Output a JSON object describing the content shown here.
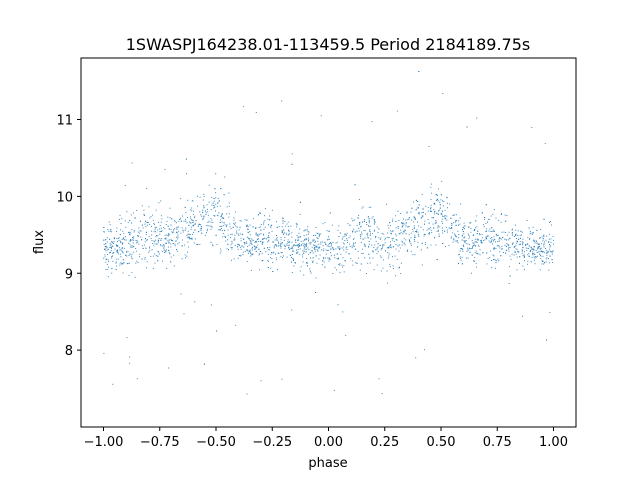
{
  "chart_data": {
    "type": "scatter",
    "title": "1SWASPJ164238.01-113459.5 Period 2184189.75s",
    "xlabel": "phase",
    "ylabel": "flux",
    "xlim": [
      -1.1,
      1.1
    ],
    "ylim": [
      7.0,
      11.8
    ],
    "xticks": [
      -1.0,
      -0.75,
      -0.5,
      -0.25,
      0.0,
      0.25,
      0.5,
      0.75,
      1.0
    ],
    "xtick_labels": [
      "−1.00",
      "−0.75",
      "−0.50",
      "−0.25",
      "0.00",
      "0.25",
      "0.50",
      "0.75",
      "1.00"
    ],
    "yticks": [
      8,
      9,
      10,
      11
    ],
    "ytick_labels": [
      "8",
      "9",
      "10",
      "11"
    ],
    "marker_color": "#1f77b4",
    "grid": false,
    "legend": "none",
    "profile": {
      "phase": [
        -1.0,
        -0.95,
        -0.9,
        -0.85,
        -0.8,
        -0.75,
        -0.7,
        -0.65,
        -0.6,
        -0.55,
        -0.5,
        -0.45,
        -0.4,
        -0.35,
        -0.3,
        -0.25,
        -0.2,
        -0.15,
        -0.1,
        -0.05,
        0.0,
        0.05,
        0.1,
        0.15,
        0.2,
        0.25,
        0.3,
        0.35,
        0.4,
        0.45,
        0.5,
        0.55,
        0.6,
        0.65,
        0.7,
        0.75,
        0.8,
        0.85,
        0.9,
        0.95,
        1.0
      ],
      "median_flux": [
        9.35,
        9.3,
        9.4,
        9.45,
        9.5,
        9.4,
        9.45,
        9.55,
        9.65,
        9.75,
        9.8,
        9.6,
        9.45,
        9.4,
        9.45,
        9.4,
        9.45,
        9.35,
        9.35,
        9.3,
        9.35,
        9.3,
        9.4,
        9.45,
        9.5,
        9.4,
        9.45,
        9.55,
        9.65,
        9.75,
        9.8,
        9.6,
        9.45,
        9.4,
        9.45,
        9.4,
        9.45,
        9.35,
        9.35,
        9.3,
        9.35
      ],
      "spread": [
        0.35,
        0.4,
        0.45,
        0.5,
        0.55,
        0.5,
        0.45,
        0.45,
        0.4,
        0.45,
        0.5,
        0.45,
        0.4,
        0.4,
        0.45,
        0.45,
        0.4,
        0.4,
        0.35,
        0.35,
        0.35,
        0.4,
        0.45,
        0.5,
        0.55,
        0.5,
        0.45,
        0.45,
        0.4,
        0.45,
        0.5,
        0.45,
        0.4,
        0.4,
        0.45,
        0.45,
        0.4,
        0.4,
        0.35,
        0.35,
        0.35
      ]
    }
  }
}
